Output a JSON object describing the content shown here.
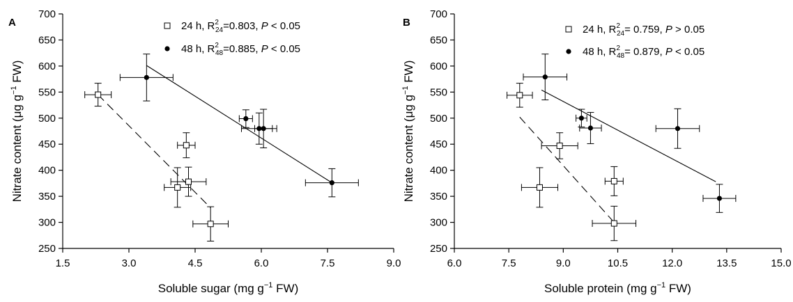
{
  "chart_data": [
    {
      "type": "scatter",
      "panel_label": "A",
      "xlabel_parts": [
        "Soluble sugar (mg g",
        "−1",
        " FW)"
      ],
      "ylabel_parts": [
        "Nitrate content (μg g",
        "−1",
        " FW)"
      ],
      "xlim": [
        1.5,
        9.0
      ],
      "ylim": [
        250,
        700
      ],
      "x_ticks": [
        "1.5",
        "3.0",
        "4.5",
        "6.0",
        "7.5",
        "9.0"
      ],
      "y_ticks": [
        "250",
        "300",
        "350",
        "400",
        "450",
        "500",
        "550",
        "600",
        "650",
        "700"
      ],
      "legend": [
        {
          "marker": "open-square",
          "parts": [
            "24 h, R",
            "2",
            "24",
            "=0.803,  ",
            "P",
            " < 0.05"
          ]
        },
        {
          "marker": "filled-circle",
          "parts": [
            "48 h, R",
            "2",
            "48",
            "=0.885,  ",
            "P",
            " < 0.05"
          ]
        }
      ],
      "series": [
        {
          "marker": "open-square",
          "fit_style": "dashed",
          "points": [
            {
              "x": 2.3,
              "y": 545,
              "xerr": 0.3,
              "yerr": 22
            },
            {
              "x": 4.3,
              "y": 448,
              "xerr": 0.2,
              "yerr": 24
            },
            {
              "x": 4.1,
              "y": 367,
              "xerr": 0.3,
              "yerr": 38
            },
            {
              "x": 4.35,
              "y": 378,
              "xerr": 0.4,
              "yerr": 28
            },
            {
              "x": 4.85,
              "y": 297,
              "xerr": 0.4,
              "yerr": 33
            }
          ],
          "fit": [
            [
              2.3,
              545
            ],
            [
              4.85,
              328
            ]
          ]
        },
        {
          "marker": "filled-circle",
          "fit_style": "solid",
          "points": [
            {
              "x": 3.4,
              "y": 578,
              "xerr": 0.6,
              "yerr": 45
            },
            {
              "x": 5.65,
              "y": 499,
              "xerr": 0.15,
              "yerr": 17
            },
            {
              "x": 5.95,
              "y": 480,
              "xerr": 0.4,
              "yerr": 30
            },
            {
              "x": 6.05,
              "y": 480,
              "xerr": 0.2,
              "yerr": 37
            },
            {
              "x": 7.6,
              "y": 376,
              "xerr": 0.6,
              "yerr": 27
            }
          ],
          "fit": [
            [
              3.4,
              601
            ],
            [
              7.6,
              376
            ]
          ]
        }
      ]
    },
    {
      "type": "scatter",
      "panel_label": "B",
      "xlabel_parts": [
        "Soluble protein (mg g",
        "−1",
        " FW)"
      ],
      "ylabel_parts": [
        "Nitrate content (μg g",
        "−1",
        " FW)"
      ],
      "xlim": [
        6.0,
        15.0
      ],
      "ylim": [
        250,
        700
      ],
      "x_ticks": [
        "6.0",
        "7.5",
        "9.0",
        "10.5",
        "12.0",
        "13.5",
        "15.0"
      ],
      "y_ticks": [
        "250",
        "300",
        "350",
        "400",
        "450",
        "500",
        "550",
        "600",
        "650",
        "700"
      ],
      "legend": [
        {
          "marker": "open-square",
          "parts": [
            "24 h, R",
            "2",
            "24",
            "= 0.759, ",
            "P",
            " > 0.05"
          ]
        },
        {
          "marker": "filled-circle",
          "parts": [
            "48 h, R",
            "2",
            "48",
            "= 0.879, ",
            "P",
            " < 0.05"
          ]
        }
      ],
      "series": [
        {
          "marker": "open-square",
          "fit_style": "dashed",
          "points": [
            {
              "x": 7.8,
              "y": 544,
              "xerr": 0.35,
              "yerr": 23
            },
            {
              "x": 8.9,
              "y": 447,
              "xerr": 0.5,
              "yerr": 25
            },
            {
              "x": 8.35,
              "y": 367,
              "xerr": 0.5,
              "yerr": 38
            },
            {
              "x": 10.4,
              "y": 379,
              "xerr": 0.25,
              "yerr": 28
            },
            {
              "x": 10.4,
              "y": 298,
              "xerr": 0.6,
              "yerr": 33
            }
          ],
          "fit": [
            [
              7.8,
              502
            ],
            [
              10.4,
              300
            ]
          ]
        },
        {
          "marker": "filled-circle",
          "fit_style": "solid",
          "points": [
            {
              "x": 8.5,
              "y": 579,
              "xerr": 0.6,
              "yerr": 44
            },
            {
              "x": 9.5,
              "y": 500,
              "xerr": 0.15,
              "yerr": 17
            },
            {
              "x": 9.75,
              "y": 481,
              "xerr": 0.3,
              "yerr": 30
            },
            {
              "x": 12.15,
              "y": 480,
              "xerr": 0.6,
              "yerr": 38
            },
            {
              "x": 13.3,
              "y": 346,
              "xerr": 0.45,
              "yerr": 27
            }
          ],
          "fit": [
            [
              8.4,
              554
            ],
            [
              13.2,
              378
            ]
          ]
        }
      ]
    }
  ]
}
